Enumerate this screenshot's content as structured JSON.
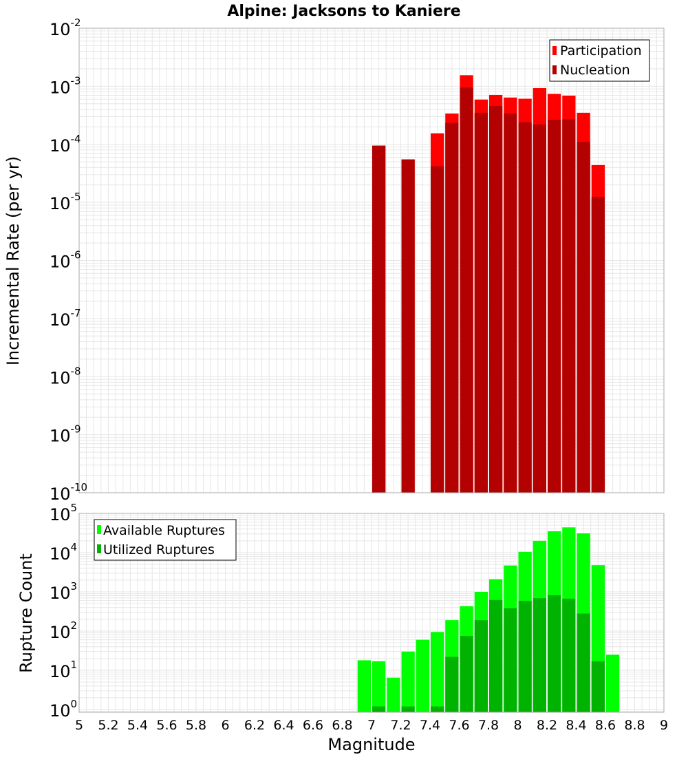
{
  "colors": {
    "participation": "#ff0000",
    "nucleation": "#b30000",
    "available": "#00ff00",
    "utilized": "#00b300",
    "grid": "#e6e6e6",
    "frame": "#aaaaaa"
  },
  "chart_data": [
    {
      "type": "bar",
      "title": "Alpine: Jacksons to Kaniere",
      "ylabel": "Incremental Rate (per yr)",
      "xlabel": "",
      "x_range": [
        5,
        9
      ],
      "y_scale": "log",
      "y_log_range": [
        -10,
        -2
      ],
      "y_ticks": [
        {
          "base": "10",
          "exp": "-2"
        },
        {
          "base": "10",
          "exp": "-3"
        },
        {
          "base": "10",
          "exp": "-4"
        },
        {
          "base": "10",
          "exp": "-5"
        },
        {
          "base": "10",
          "exp": "-6"
        },
        {
          "base": "10",
          "exp": "-7"
        },
        {
          "base": "10",
          "exp": "-8"
        },
        {
          "base": "10",
          "exp": "-9"
        },
        {
          "base": "10",
          "exp": "-10"
        }
      ],
      "legend_position": "top-right",
      "bin_width": 0.1,
      "x": [
        7.05,
        7.25,
        7.45,
        7.55,
        7.65,
        7.75,
        7.85,
        7.95,
        8.05,
        8.15,
        8.25,
        8.35,
        8.45,
        8.55
      ],
      "series": [
        {
          "name": "Participation",
          "values": [
            9.5e-05,
            5.5e-05,
            0.000155,
            0.00034,
            0.00155,
            0.00059,
            0.00071,
            0.00064,
            0.00061,
            0.00093,
            0.00074,
            0.00069,
            0.00035,
            4.4e-05
          ]
        },
        {
          "name": "Nucleation",
          "values": [
            9.5e-05,
            5.5e-05,
            4.2e-05,
            0.000235,
            0.00095,
            0.00035,
            0.00046,
            0.00034,
            0.00024,
            0.00022,
            0.000265,
            0.00027,
            0.00011,
            1.25e-05
          ]
        }
      ]
    },
    {
      "type": "bar",
      "title": "",
      "ylabel": "Rupture Count",
      "xlabel": "Magnitude",
      "x_range": [
        5,
        9
      ],
      "x_ticks": [
        "5",
        "5.2",
        "5.4",
        "5.6",
        "5.8",
        "6",
        "6.2",
        "6.4",
        "6.6",
        "6.8",
        "7",
        "7.2",
        "7.4",
        "7.6",
        "7.8",
        "8",
        "8.2",
        "8.4",
        "8.6",
        "8.8",
        "9"
      ],
      "y_scale": "log",
      "y_log_range": [
        -0.07,
        5
      ],
      "y_ticks": [
        {
          "base": "10",
          "exp": "5"
        },
        {
          "base": "10",
          "exp": "4"
        },
        {
          "base": "10",
          "exp": "3"
        },
        {
          "base": "10",
          "exp": "2"
        },
        {
          "base": "10",
          "exp": "1"
        },
        {
          "base": "10",
          "exp": "0"
        }
      ],
      "legend_position": "top-left",
      "bin_width": 0.1,
      "x": [
        6.95,
        7.05,
        7.15,
        7.25,
        7.35,
        7.45,
        7.55,
        7.65,
        7.75,
        7.85,
        7.95,
        8.05,
        8.15,
        8.25,
        8.35,
        8.45,
        8.55,
        8.65
      ],
      "series": [
        {
          "name": "Available Ruptures",
          "values": [
            18,
            17,
            6.5,
            30,
            60,
            95,
            190,
            430,
            1000,
            2100,
            4700,
            10500,
            20000,
            35000,
            44000,
            31000,
            4800,
            25
          ]
        },
        {
          "name": "Utilized Ruptures",
          "values": [
            0,
            1.2,
            0,
            1.2,
            0,
            1.2,
            22,
            75,
            190,
            620,
            380,
            590,
            690,
            820,
            670,
            280,
            17,
            0
          ]
        }
      ]
    }
  ]
}
